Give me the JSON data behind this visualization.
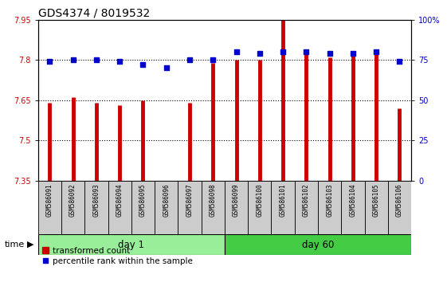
{
  "title": "GDS4374 / 8019532",
  "samples": [
    "GSM586091",
    "GSM586092",
    "GSM586093",
    "GSM586094",
    "GSM586095",
    "GSM586096",
    "GSM586097",
    "GSM586098",
    "GSM586099",
    "GSM586100",
    "GSM586101",
    "GSM586102",
    "GSM586103",
    "GSM586104",
    "GSM586105",
    "GSM586106"
  ],
  "transformed_count": [
    7.64,
    7.66,
    7.64,
    7.63,
    7.65,
    7.35,
    7.64,
    7.79,
    7.8,
    7.8,
    7.95,
    7.82,
    7.81,
    7.82,
    7.82,
    7.62
  ],
  "percentile_rank": [
    74,
    75,
    75,
    74,
    72,
    70,
    75,
    75,
    80,
    79,
    80,
    80,
    79,
    79,
    80,
    74
  ],
  "ylim_left": [
    7.35,
    7.95
  ],
  "ylim_right": [
    0,
    100
  ],
  "yticks_left": [
    7.35,
    7.5,
    7.65,
    7.8,
    7.95
  ],
  "yticks_right": [
    0,
    25,
    50,
    75,
    100
  ],
  "ytick_labels_right": [
    "0",
    "25",
    "50",
    "75",
    "100%"
  ],
  "bar_color": "#cc0000",
  "dot_color": "#0000cc",
  "bar_bottom": 7.35,
  "day1_samples": 8,
  "day60_samples": 8,
  "day1_label": "day 1",
  "day60_label": "day 60",
  "time_label": "time",
  "legend_bar_label": "transformed count",
  "legend_dot_label": "percentile rank within the sample",
  "bg_color_day1": "#99ee99",
  "bg_color_day60": "#44cc44",
  "tick_bg_color": "#cccccc",
  "grid_dotted_vals": [
    7.5,
    7.65,
    7.8
  ],
  "title_fontsize": 10,
  "tick_fontsize": 7,
  "label_fontsize": 7,
  "bar_linewidth": 3.5
}
